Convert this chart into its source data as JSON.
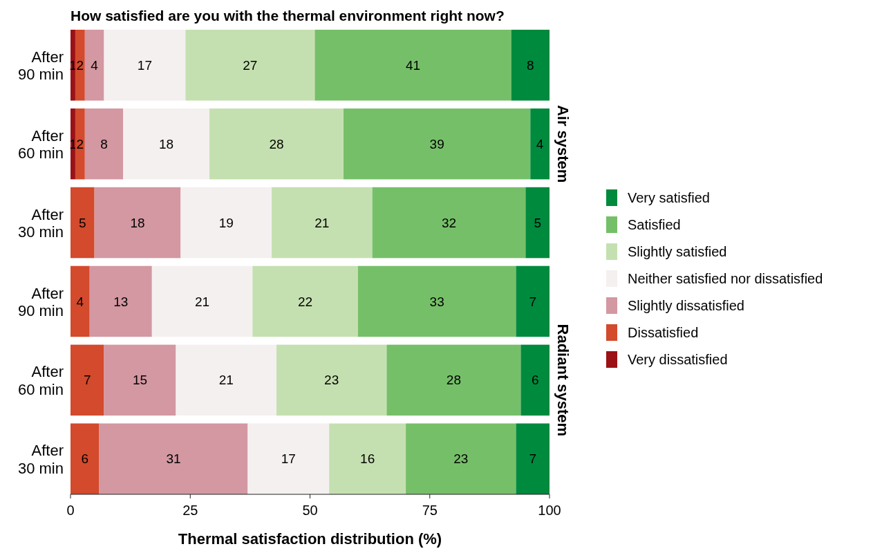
{
  "chart_data": {
    "type": "bar",
    "orientation": "horizontal",
    "stacked": true,
    "title": "How satisfied are you with the thermal environment right now?",
    "xlabel": "Thermal satisfaction distribution (%)",
    "categories": [
      "After 90 min",
      "After 60 min",
      "After 30 min",
      "After 90 min",
      "After 60 min",
      "After 30 min"
    ],
    "series": [
      {
        "name": "Very dissatisfied",
        "color": "#9b1116",
        "values": [
          1,
          1,
          null,
          null,
          null,
          null
        ]
      },
      {
        "name": "Dissatisfied",
        "color": "#d34a2c",
        "values": [
          2,
          2,
          5,
          4,
          7,
          6
        ]
      },
      {
        "name": "Slightly dissatisfied",
        "color": "#d398a2",
        "values": [
          4,
          8,
          18,
          13,
          15,
          31
        ]
      },
      {
        "name": "Neither satisfied nor dissatisfied",
        "color": "#f4f0ef",
        "values": [
          17,
          18,
          19,
          21,
          21,
          17
        ]
      },
      {
        "name": "Slightly satisfied",
        "color": "#c5e0b0",
        "values": [
          27,
          28,
          21,
          22,
          23,
          16
        ]
      },
      {
        "name": "Satisfied",
        "color": "#76bf69",
        "values": [
          41,
          39,
          32,
          33,
          28,
          23
        ]
      },
      {
        "name": "Very satisfied",
        "color": "#008a3e",
        "values": [
          8,
          4,
          5,
          7,
          6,
          7
        ]
      }
    ],
    "xlim": [
      0,
      100
    ],
    "xticks": [
      0,
      25,
      50,
      75,
      100
    ],
    "legend": "right",
    "data_labels": true,
    "annotations": [
      "Air system",
      "Radiant system"
    ]
  }
}
